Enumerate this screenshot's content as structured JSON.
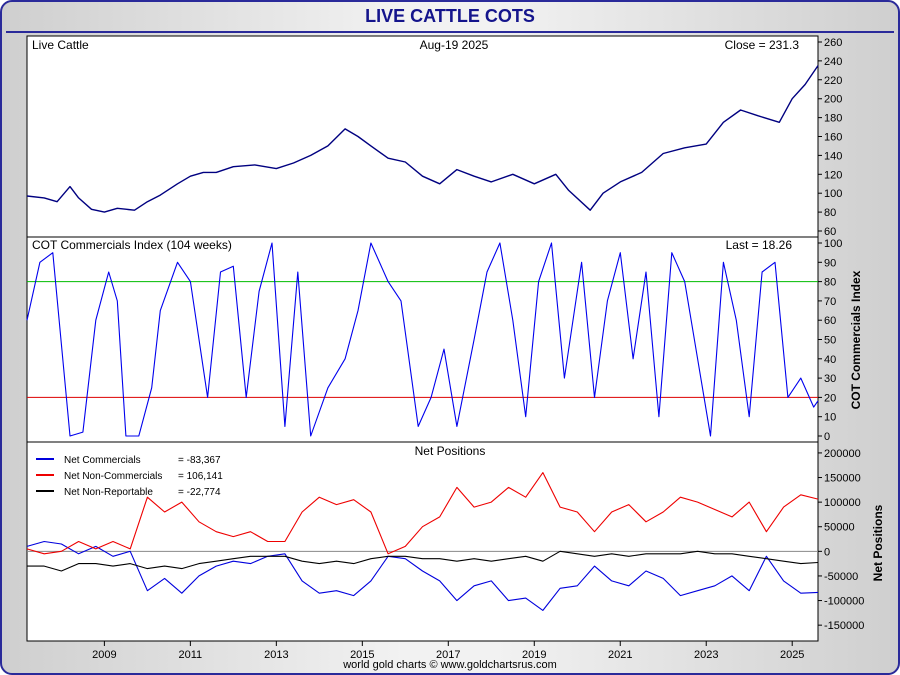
{
  "title": "LIVE CATTLE COTS",
  "credit": "world gold charts © www.goldchartsrus.com",
  "chart_data": [
    {
      "type": "line",
      "panel": "price",
      "label_left": "Live Cattle",
      "label_center": "Aug-19  2025",
      "label_right": "Close = 231.3",
      "ylim": [
        60,
        260
      ],
      "yticks": [
        60,
        80,
        100,
        120,
        140,
        160,
        180,
        200,
        220,
        240,
        260
      ],
      "series": [
        {
          "color": "#000080",
          "x": [
            2007.2,
            2007.6,
            2007.9,
            2008.2,
            2008.4,
            2008.7,
            2009.0,
            2009.3,
            2009.7,
            2010.0,
            2010.3,
            2010.7,
            2011.0,
            2011.3,
            2011.6,
            2012.0,
            2012.5,
            2013.0,
            2013.4,
            2013.8,
            2014.2,
            2014.6,
            2014.9,
            2015.2,
            2015.6,
            2016.0,
            2016.4,
            2016.8,
            2017.2,
            2017.6,
            2018.0,
            2018.5,
            2019.0,
            2019.5,
            2019.8,
            2020.3,
            2020.6,
            2021.0,
            2021.5,
            2022.0,
            2022.5,
            2023.0,
            2023.4,
            2023.8,
            2024.2,
            2024.7,
            2025.0,
            2025.3,
            2025.6
          ],
          "y": [
            97,
            95,
            91,
            107,
            95,
            83,
            80,
            84,
            82,
            91,
            98,
            110,
            118,
            122,
            122,
            128,
            130,
            126,
            132,
            140,
            150,
            168,
            160,
            150,
            137,
            133,
            118,
            110,
            125,
            118,
            112,
            120,
            110,
            120,
            103,
            82,
            100,
            112,
            122,
            142,
            148,
            152,
            175,
            188,
            182,
            175,
            200,
            215,
            235
          ]
        }
      ]
    },
    {
      "type": "line",
      "panel": "cot_index",
      "title": "COT Commercials Index (104 weeks)",
      "label_right": "Last = 18.26",
      "ylabel": "COT Commercials Index",
      "ylim": [
        0,
        100
      ],
      "yticks": [
        0,
        10,
        20,
        30,
        40,
        50,
        60,
        70,
        80,
        90,
        100
      ],
      "reference_lines": [
        {
          "value": 80,
          "color": "#00bb00"
        },
        {
          "value": 20,
          "color": "#dd0000"
        }
      ],
      "series": [
        {
          "color": "#0000ee",
          "x": [
            2007.2,
            2007.5,
            2007.8,
            2008.2,
            2008.5,
            2008.8,
            2009.1,
            2009.3,
            2009.5,
            2009.8,
            2010.1,
            2010.3,
            2010.7,
            2011.0,
            2011.4,
            2011.7,
            2012.0,
            2012.3,
            2012.6,
            2012.9,
            2013.2,
            2013.5,
            2013.8,
            2014.2,
            2014.6,
            2014.9,
            2015.2,
            2015.6,
            2015.9,
            2016.3,
            2016.6,
            2016.9,
            2017.2,
            2017.6,
            2017.9,
            2018.2,
            2018.5,
            2018.8,
            2019.1,
            2019.4,
            2019.7,
            2020.1,
            2020.4,
            2020.7,
            2021.0,
            2021.3,
            2021.6,
            2021.9,
            2022.2,
            2022.5,
            2022.8,
            2023.1,
            2023.4,
            2023.7,
            2024.0,
            2024.3,
            2024.6,
            2024.9,
            2025.2,
            2025.5,
            2025.6
          ],
          "y": [
            60,
            90,
            95,
            0,
            2,
            60,
            85,
            70,
            0,
            0,
            25,
            65,
            90,
            80,
            20,
            85,
            88,
            20,
            75,
            100,
            5,
            85,
            0,
            25,
            40,
            65,
            100,
            80,
            70,
            5,
            20,
            45,
            5,
            50,
            85,
            100,
            60,
            10,
            80,
            100,
            30,
            90,
            20,
            70,
            95,
            40,
            85,
            10,
            95,
            80,
            40,
            0,
            90,
            60,
            10,
            85,
            90,
            20,
            30,
            15,
            18.26
          ]
        }
      ]
    },
    {
      "type": "line",
      "panel": "net_positions",
      "title": "Net Positions",
      "ylabel": "Net Positions",
      "ylim": [
        -170000,
        210000
      ],
      "yticks": [
        -150000,
        -100000,
        -50000,
        0,
        50000,
        100000,
        150000,
        200000
      ],
      "ytick_labels": [
        "-150000",
        "-100000",
        "-50000",
        "0",
        "50000",
        "100000",
        "150000",
        "200000"
      ],
      "series": [
        {
          "name": "Net Commercials",
          "legend_value": "= -83,367",
          "color": "#0000dd",
          "x": [
            2007.2,
            2007.6,
            2008.0,
            2008.4,
            2008.8,
            2009.2,
            2009.6,
            2010.0,
            2010.4,
            2010.8,
            2011.2,
            2011.6,
            2012.0,
            2012.4,
            2012.8,
            2013.2,
            2013.6,
            2014.0,
            2014.4,
            2014.8,
            2015.2,
            2015.6,
            2016.0,
            2016.4,
            2016.8,
            2017.2,
            2017.6,
            2018.0,
            2018.4,
            2018.8,
            2019.2,
            2019.6,
            2020.0,
            2020.4,
            2020.8,
            2021.2,
            2021.6,
            2022.0,
            2022.4,
            2022.8,
            2023.2,
            2023.6,
            2024.0,
            2024.4,
            2024.8,
            2025.2,
            2025.6
          ],
          "y": [
            10000,
            20000,
            15000,
            -5000,
            10000,
            -10000,
            0,
            -80000,
            -55000,
            -85000,
            -50000,
            -30000,
            -20000,
            -25000,
            -10000,
            -5000,
            -60000,
            -85000,
            -80000,
            -90000,
            -60000,
            -10000,
            -15000,
            -40000,
            -60000,
            -100000,
            -70000,
            -60000,
            -100000,
            -95000,
            -120000,
            -75000,
            -70000,
            -30000,
            -60000,
            -70000,
            -40000,
            -55000,
            -90000,
            -80000,
            -70000,
            -50000,
            -80000,
            -10000,
            -60000,
            -85000,
            -83367
          ]
        },
        {
          "name": "Net Non-Commercials",
          "legend_value": "= 106,141",
          "color": "#ee0000",
          "x": [
            2007.2,
            2007.6,
            2008.0,
            2008.4,
            2008.8,
            2009.2,
            2009.6,
            2010.0,
            2010.4,
            2010.8,
            2011.2,
            2011.6,
            2012.0,
            2012.4,
            2012.8,
            2013.2,
            2013.6,
            2014.0,
            2014.4,
            2014.8,
            2015.2,
            2015.6,
            2016.0,
            2016.4,
            2016.8,
            2017.2,
            2017.6,
            2018.0,
            2018.4,
            2018.8,
            2019.2,
            2019.6,
            2020.0,
            2020.4,
            2020.8,
            2021.2,
            2021.6,
            2022.0,
            2022.4,
            2022.8,
            2023.2,
            2023.6,
            2024.0,
            2024.4,
            2024.8,
            2025.2,
            2025.6
          ],
          "y": [
            5000,
            -5000,
            0,
            20000,
            5000,
            20000,
            5000,
            110000,
            80000,
            100000,
            60000,
            40000,
            30000,
            40000,
            20000,
            20000,
            80000,
            110000,
            95000,
            105000,
            80000,
            -5000,
            10000,
            50000,
            70000,
            130000,
            90000,
            100000,
            130000,
            110000,
            160000,
            90000,
            80000,
            40000,
            80000,
            95000,
            60000,
            80000,
            110000,
            100000,
            85000,
            70000,
            100000,
            40000,
            90000,
            115000,
            106141
          ]
        },
        {
          "name": "Net Non-Reportable",
          "legend_value": "= -22,774",
          "color": "#000000",
          "x": [
            2007.2,
            2007.6,
            2008.0,
            2008.4,
            2008.8,
            2009.2,
            2009.6,
            2010.0,
            2010.4,
            2010.8,
            2011.2,
            2011.6,
            2012.0,
            2012.4,
            2012.8,
            2013.2,
            2013.6,
            2014.0,
            2014.4,
            2014.8,
            2015.2,
            2015.6,
            2016.0,
            2016.4,
            2016.8,
            2017.2,
            2017.6,
            2018.0,
            2018.4,
            2018.8,
            2019.2,
            2019.6,
            2020.0,
            2020.4,
            2020.8,
            2021.2,
            2021.6,
            2022.0,
            2022.4,
            2022.8,
            2023.2,
            2023.6,
            2024.0,
            2024.4,
            2024.8,
            2025.2,
            2025.6
          ],
          "y": [
            -30000,
            -30000,
            -40000,
            -25000,
            -25000,
            -30000,
            -25000,
            -35000,
            -30000,
            -35000,
            -25000,
            -20000,
            -15000,
            -10000,
            -10000,
            -10000,
            -20000,
            -25000,
            -20000,
            -25000,
            -15000,
            -10000,
            -10000,
            -15000,
            -15000,
            -20000,
            -15000,
            -20000,
            -15000,
            -10000,
            -20000,
            0,
            -5000,
            -10000,
            -5000,
            -10000,
            -5000,
            -5000,
            -5000,
            0,
            -5000,
            -5000,
            -10000,
            -15000,
            -20000,
            -25000,
            -22774
          ]
        }
      ]
    }
  ],
  "x_axis": {
    "xlim": [
      2007.2,
      2025.6
    ],
    "ticks": [
      2009,
      2011,
      2013,
      2015,
      2017,
      2019,
      2021,
      2023,
      2025
    ],
    "labels": [
      "2009",
      "2011",
      "2013",
      "2015",
      "2017",
      "2019",
      "2021",
      "2023",
      "2025"
    ]
  }
}
